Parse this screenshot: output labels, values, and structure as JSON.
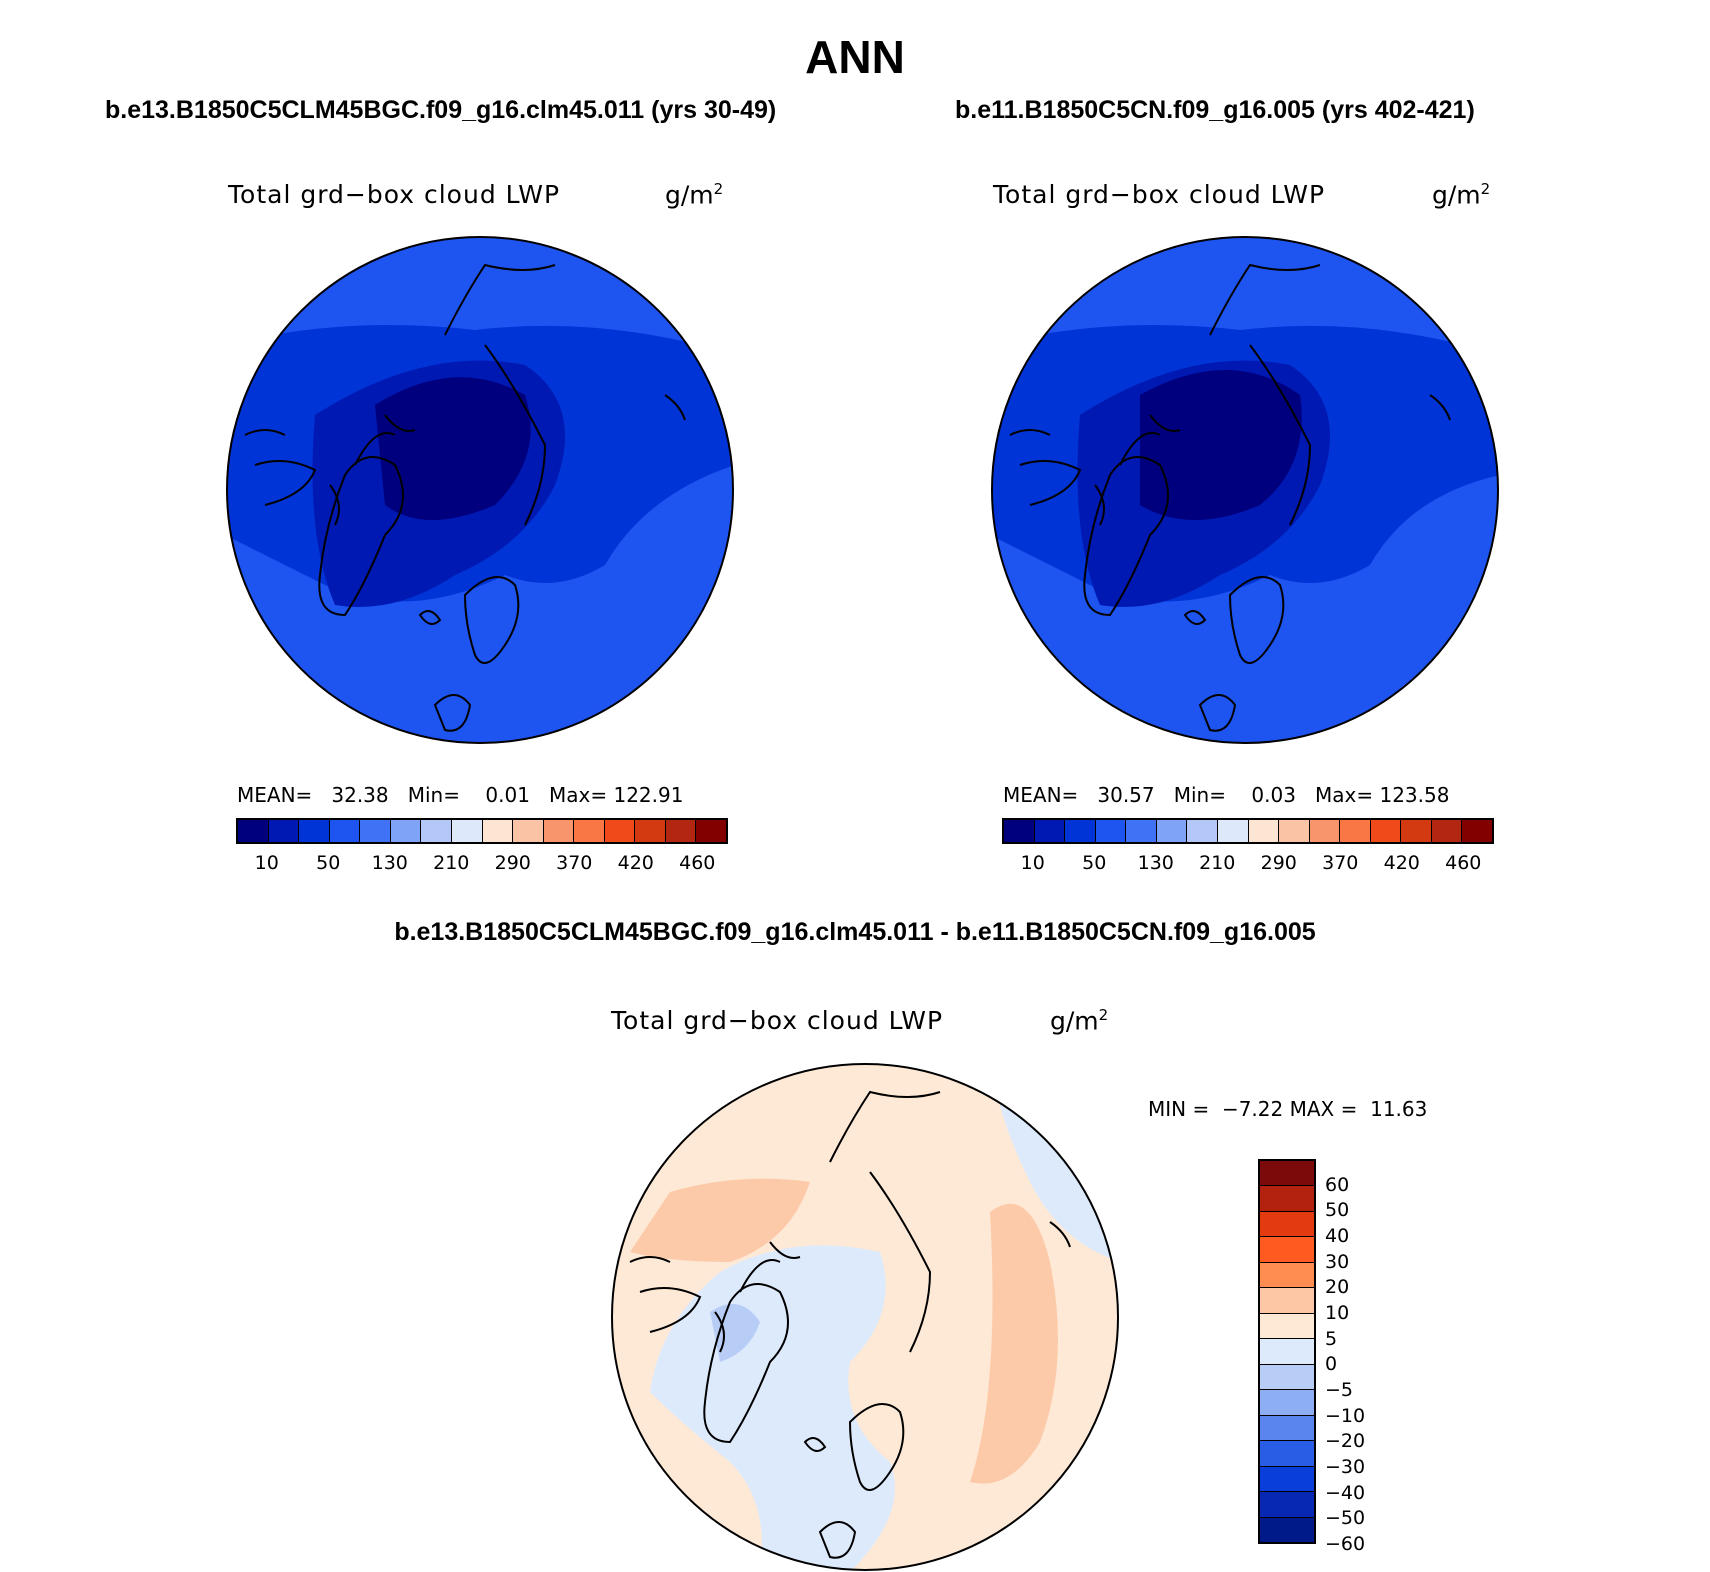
{
  "title": "ANN",
  "panels": [
    {
      "case_title": "b.e13.B1850C5CLM45BGC.f09_g16.clm45.011 (yrs 30-49)",
      "variable": "Total grd−box cloud LWP",
      "units": "g/m",
      "units_exp": "2",
      "stats": {
        "mean_label": "MEAN=",
        "mean": "32.38",
        "min_label": "Min=",
        "min": "0.01",
        "max_label": "Max=",
        "max": "122.91"
      }
    },
    {
      "case_title": "b.e11.B1850C5CN.f09_g16.005 (yrs 402-421)",
      "variable": "Total grd−box cloud LWP",
      "units": "g/m",
      "units_exp": "2",
      "stats": {
        "mean_label": "MEAN=",
        "mean": "30.57",
        "min_label": "Min=",
        "min": "0.03",
        "max_label": "Max=",
        "max": "123.58"
      }
    }
  ],
  "diff_panel": {
    "case_title": "b.e13.B1850C5CLM45BGC.f09_g16.clm45.011 - b.e11.B1850C5CN.f09_g16.005",
    "variable": "Total grd−box cloud LWP",
    "units": "g/m",
    "units_exp": "2",
    "stats": {
      "min_label": "MIN =",
      "min": "−7.22",
      "max_label": "MAX =",
      "max": "11.63"
    }
  },
  "colorbar_top": {
    "colors": [
      "#00007f",
      "#0019b3",
      "#0034d6",
      "#1e54f0",
      "#3f72f5",
      "#7ea3f7",
      "#b3c8f8",
      "#dde9fb",
      "#fde5d3",
      "#fbc3a6",
      "#f8956c",
      "#f87744",
      "#f04a1a",
      "#d33a12",
      "#b22612",
      "#820000"
    ],
    "labels": [
      "10",
      "50",
      "130",
      "210",
      "290",
      "370",
      "420",
      "460"
    ]
  },
  "colorbar_diff": {
    "colors": [
      "#7d0a0a",
      "#b3220e",
      "#e33a10",
      "#ff5a20",
      "#ff8c50",
      "#fdc6a4",
      "#fde9d6",
      "#ddeafc",
      "#b7cdf6",
      "#8eaef3",
      "#5a84ee",
      "#2a5de5",
      "#0a3edb",
      "#0628b2",
      "#001a8a"
    ],
    "labels": [
      "60",
      "50",
      "40",
      "30",
      "20",
      "10",
      "5",
      "0",
      "−5",
      "−10",
      "−20",
      "−30",
      "−40",
      "−50",
      "−60"
    ]
  },
  "chart_data": {
    "type": "map",
    "projection": "north polar stereographic",
    "panels": [
      {
        "name": "b.e13.B1850C5CLM45BGC.f09_g16.clm45.011 (yrs 30-49)",
        "mean": 32.38,
        "min": 0.01,
        "max": 122.91,
        "contour_levels": [
          10,
          30,
          50,
          90,
          130,
          170,
          210,
          250,
          290,
          330,
          370,
          400,
          420,
          440,
          460
        ]
      },
      {
        "name": "b.e11.B1850C5CN.f09_g16.005 (yrs 402-421)",
        "mean": 30.57,
        "min": 0.03,
        "max": 123.58,
        "contour_levels": [
          10,
          30,
          50,
          90,
          130,
          170,
          210,
          250,
          290,
          330,
          370,
          400,
          420,
          440,
          460
        ]
      },
      {
        "name": "b.e13.B1850C5CLM45BGC.f09_g16.clm45.011 - b.e11.B1850C5CN.f09_g16.005",
        "min": -7.22,
        "max": 11.63,
        "contour_levels": [
          -60,
          -50,
          -40,
          -30,
          -20,
          -10,
          -5,
          0,
          5,
          10,
          20,
          30,
          40,
          50,
          60
        ]
      }
    ]
  }
}
